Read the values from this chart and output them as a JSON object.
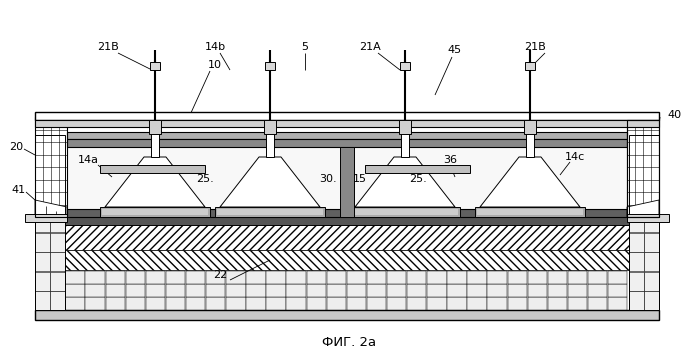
{
  "bg_color": "#ffffff",
  "fig_width": 6.99,
  "fig_height": 3.55,
  "labels": {
    "21B_left": "21В",
    "14b": "14b",
    "10": "10",
    "5": "5",
    "21A": "21А",
    "45": "45",
    "21B_right": "21В",
    "40": "40",
    "20": "20",
    "14a": "14а",
    "36": "36",
    "14c": "14с",
    "41": "41",
    "25_left": "25.",
    "30": "30.",
    "15": "15",
    "25_right": "25.",
    "22": "22",
    "caption": "ФИГ. 2а"
  }
}
